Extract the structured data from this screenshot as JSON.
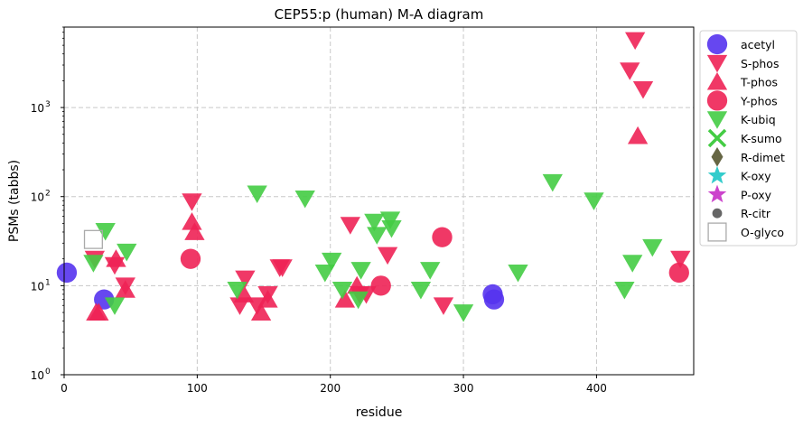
{
  "chart_data": {
    "type": "scatter",
    "title": "CEP55:p (human) M-A diagram",
    "xlabel": "residue",
    "ylabel": "PSMs (tabbs)",
    "x_range": [
      0,
      473
    ],
    "y_range": [
      1,
      8000
    ],
    "y_scale": "log",
    "x_ticks": [
      0,
      100,
      200,
      300,
      400
    ],
    "x_tick_labels": [
      "0",
      "100",
      "200",
      "300",
      "400"
    ],
    "y_ticks": [
      1,
      10,
      100,
      1000
    ],
    "y_tick_labels": [
      "10",
      "10",
      "10",
      "10"
    ],
    "y_tick_exponents": [
      "0",
      "1",
      "2",
      "3"
    ],
    "grid": true,
    "legend_position": "outside-right",
    "series": [
      {
        "name": "acetyl",
        "marker": "circle",
        "color": "#5533ee",
        "points": [
          [
            2,
            14
          ],
          [
            30,
            7
          ],
          [
            322,
            8
          ],
          [
            323,
            7
          ]
        ]
      },
      {
        "name": "S-phos",
        "marker": "triangle-down",
        "color": "#ee2255",
        "points": [
          [
            23,
            20
          ],
          [
            38,
            17
          ],
          [
            46,
            10
          ],
          [
            96,
            88
          ],
          [
            132,
            6
          ],
          [
            136,
            12
          ],
          [
            145,
            6
          ],
          [
            153,
            8
          ],
          [
            162,
            16
          ],
          [
            164,
            16
          ],
          [
            215,
            48
          ],
          [
            222,
            8
          ],
          [
            227,
            8
          ],
          [
            243,
            22
          ],
          [
            285,
            6
          ],
          [
            425,
            2600
          ],
          [
            429,
            5700
          ],
          [
            435,
            1600
          ],
          [
            463,
            20
          ]
        ]
      },
      {
        "name": "T-phos",
        "marker": "triangle-up",
        "color": "#ee2255",
        "points": [
          [
            24,
            5
          ],
          [
            26,
            5
          ],
          [
            39,
            20
          ],
          [
            46,
            9
          ],
          [
            96,
            52
          ],
          [
            98,
            40
          ],
          [
            135,
            8
          ],
          [
            148,
            5
          ],
          [
            153,
            7
          ],
          [
            211,
            7
          ],
          [
            220,
            10
          ],
          [
            431,
            480
          ]
        ]
      },
      {
        "name": "Y-phos",
        "marker": "circle",
        "color": "#ee2255",
        "points": [
          [
            95,
            20
          ],
          [
            238,
            10
          ],
          [
            284,
            35
          ],
          [
            462,
            14
          ]
        ]
      },
      {
        "name": "K-ubiq",
        "marker": "triangle-down",
        "color": "#44cc44",
        "points": [
          [
            22,
            18
          ],
          [
            31,
            41
          ],
          [
            38,
            6
          ],
          [
            47,
            24
          ],
          [
            130,
            9
          ],
          [
            145,
            108
          ],
          [
            181,
            95
          ],
          [
            196,
            14
          ],
          [
            201,
            19
          ],
          [
            209,
            9
          ],
          [
            221,
            7
          ],
          [
            223,
            15
          ],
          [
            233,
            52
          ],
          [
            235,
            37
          ],
          [
            245,
            55
          ],
          [
            246,
            44
          ],
          [
            268,
            9
          ],
          [
            275,
            15
          ],
          [
            300,
            5
          ],
          [
            341,
            14
          ],
          [
            367,
            145
          ],
          [
            398,
            90
          ],
          [
            421,
            9
          ],
          [
            427,
            18
          ],
          [
            442,
            27
          ]
        ]
      },
      {
        "name": "K-sumo",
        "marker": "x",
        "color": "#44cc44",
        "points": []
      },
      {
        "name": "R-dimet",
        "marker": "diamond",
        "color": "#666644",
        "points": []
      },
      {
        "name": "K-oxy",
        "marker": "star",
        "color": "#33cccc",
        "points": []
      },
      {
        "name": "P-oxy",
        "marker": "star",
        "color": "#cc44cc",
        "points": []
      },
      {
        "name": "R-citr",
        "marker": "dot",
        "color": "#666666",
        "points": []
      },
      {
        "name": "O-glyco",
        "marker": "square-open",
        "color": "#aaaaaa",
        "points": [
          [
            22,
            33
          ]
        ]
      }
    ]
  }
}
